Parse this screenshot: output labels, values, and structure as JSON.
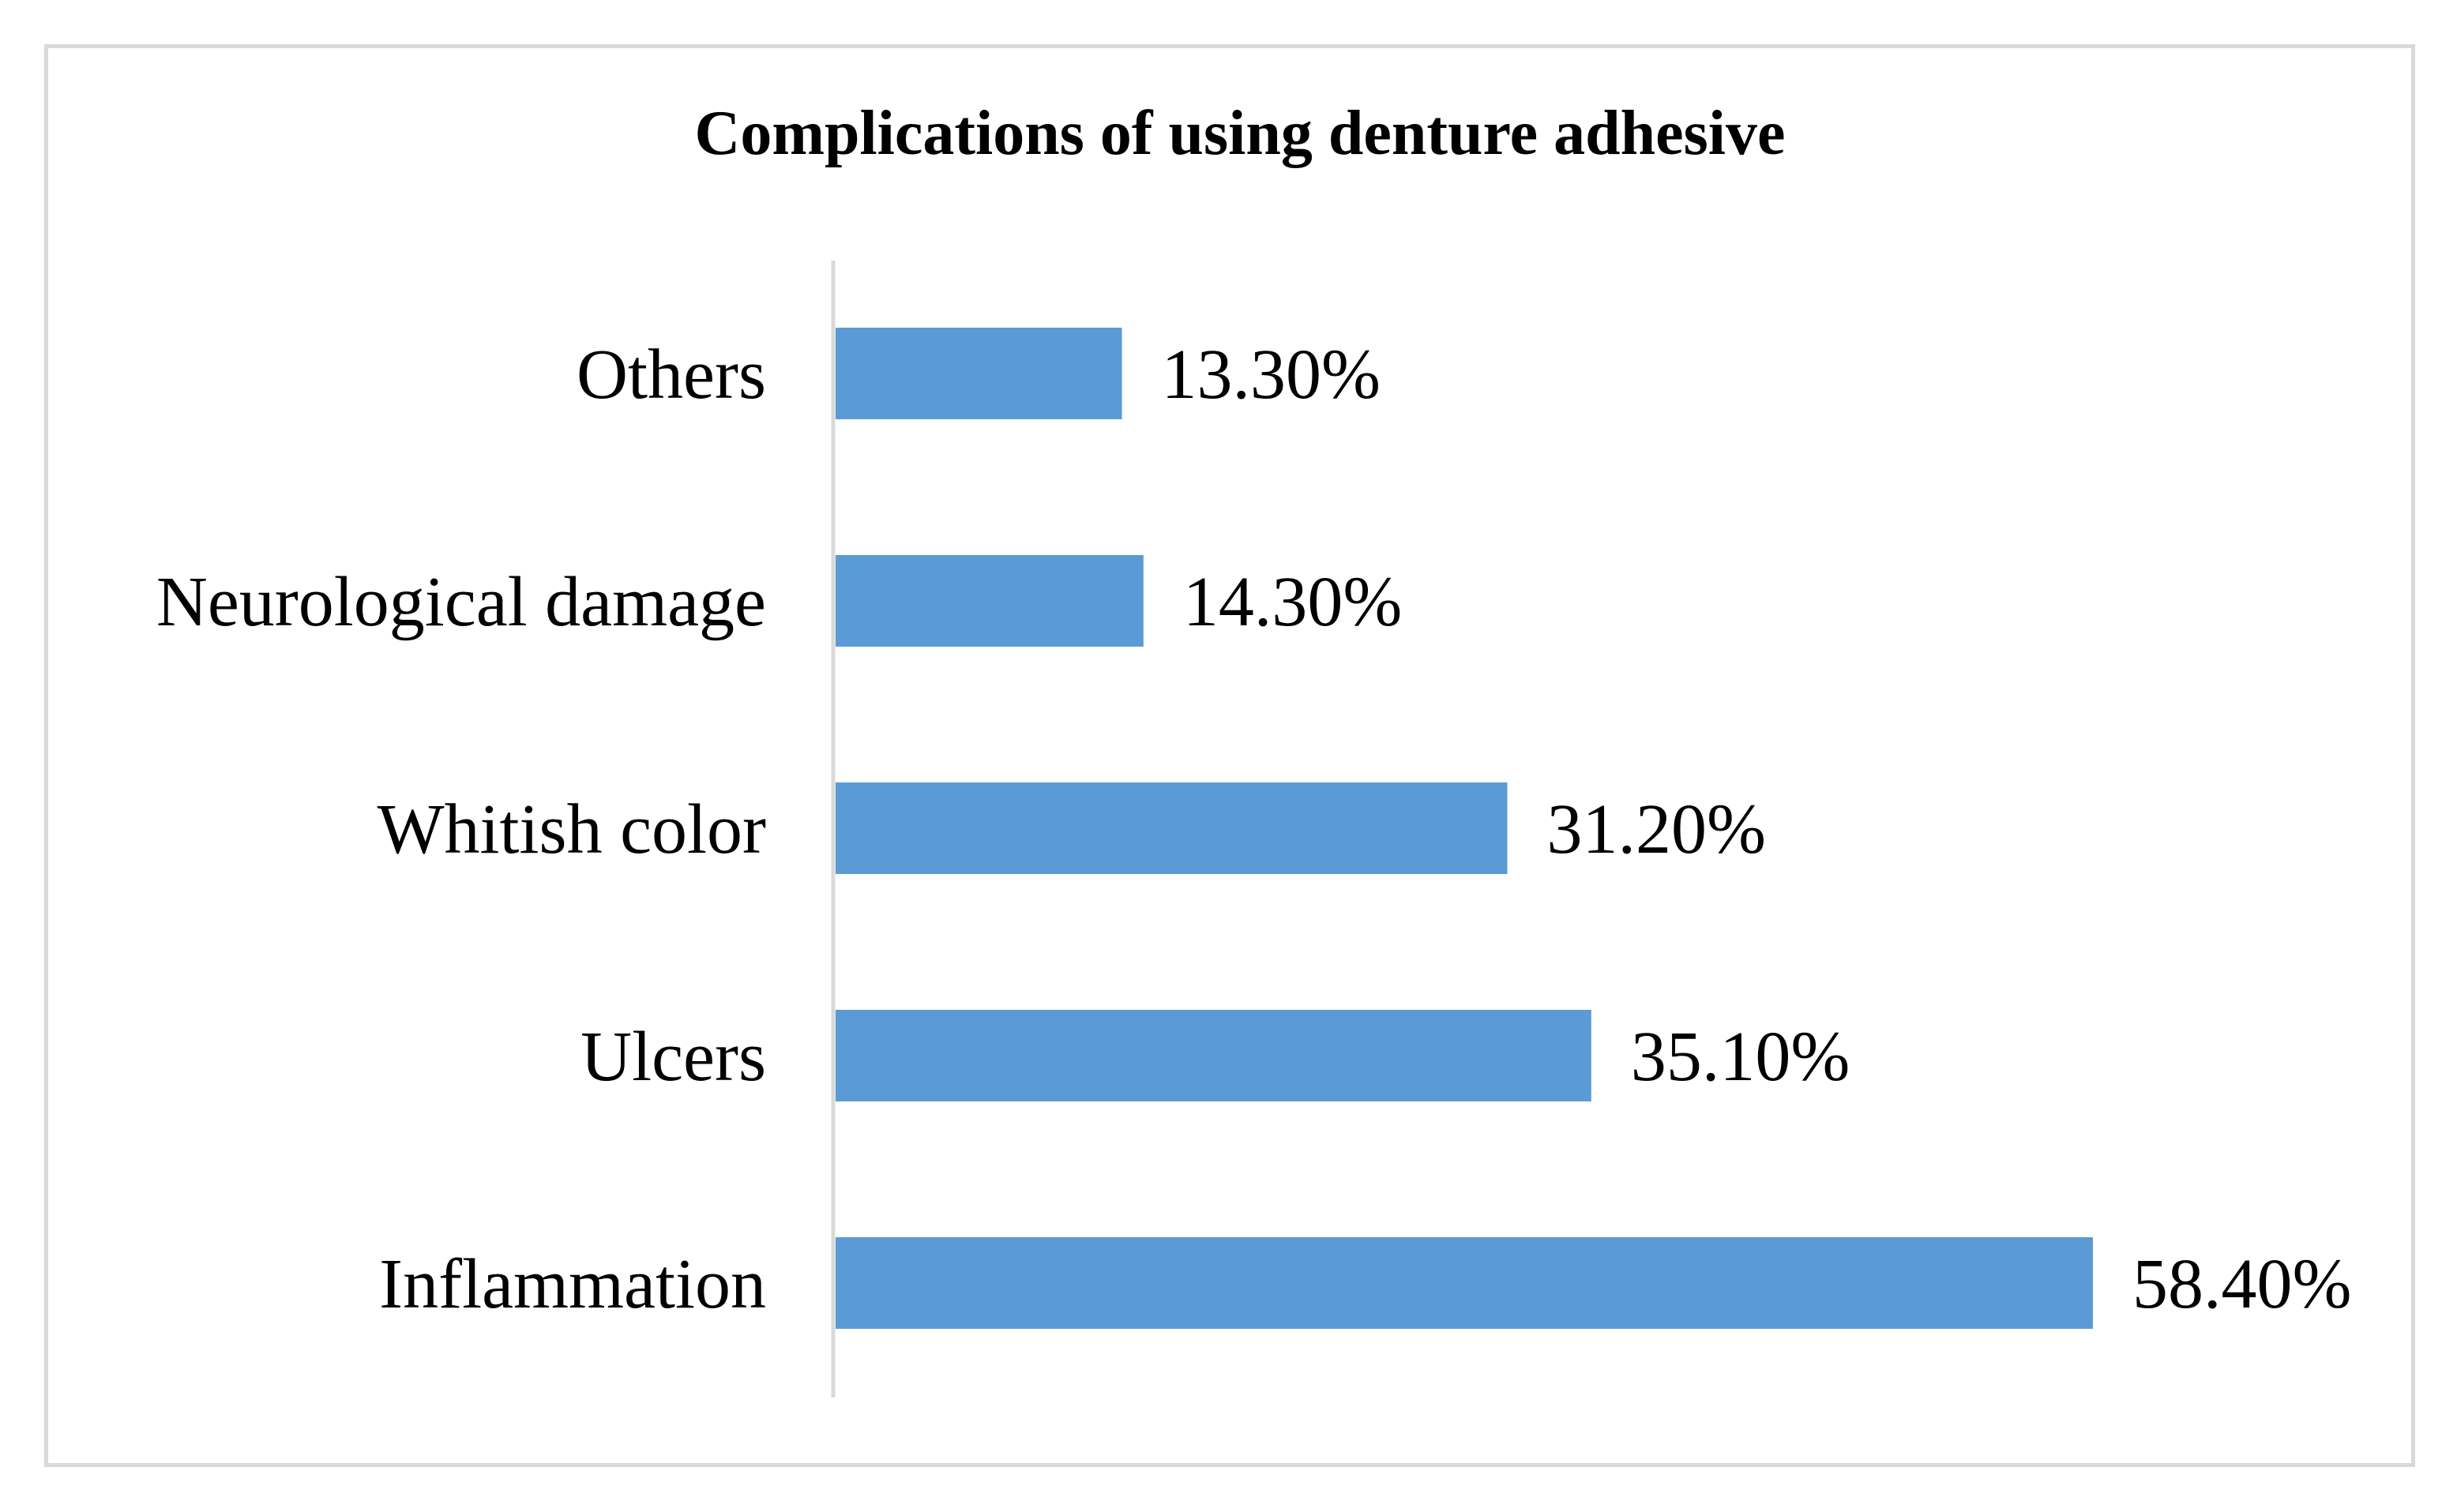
{
  "chart_data": {
    "type": "bar",
    "orientation": "horizontal",
    "title": "Complications of using denture adhesive",
    "categories": [
      "Others",
      "Neurological damage",
      "Whitish color",
      "Ulcers",
      "Inflammation"
    ],
    "values": [
      13.3,
      14.3,
      31.2,
      35.1,
      58.4
    ],
    "value_labels": [
      "13.30%",
      "14.30%",
      "31.20%",
      "35.10%",
      "58.40%"
    ],
    "xlim": [
      0,
      58.4
    ],
    "grid": false,
    "legend": "none",
    "bar_color": "#5b9bd5",
    "axis_color": "#d9d9d9"
  }
}
